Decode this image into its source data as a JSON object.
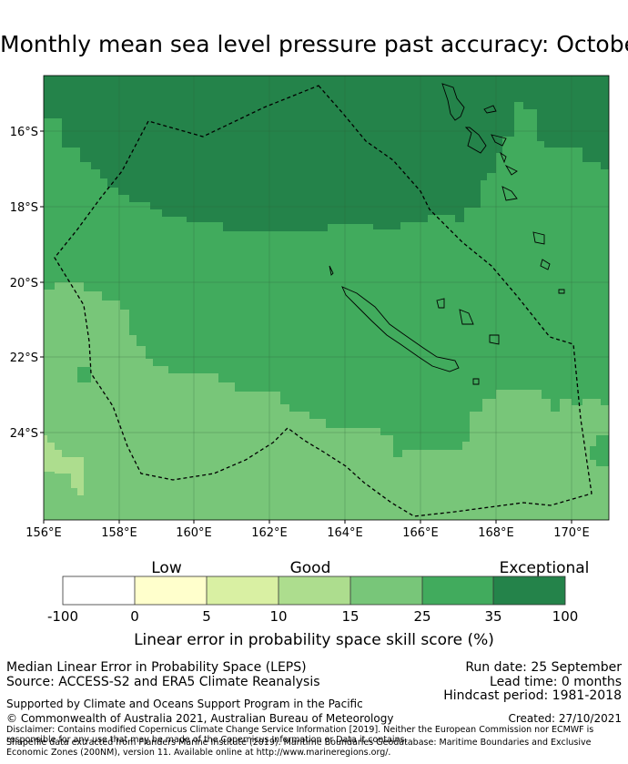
{
  "title": "Monthly mean sea level pressure past accuracy: October",
  "map": {
    "y_labels": [
      "16°S",
      "18°S",
      "20°S",
      "22°S",
      "24°S"
    ],
    "x_labels": [
      "156°E",
      "158°E",
      "160°E",
      "162°E",
      "164°E",
      "166°E",
      "168°E",
      "170°E"
    ],
    "lon_range": [
      156,
      171
    ],
    "lat_range": [
      -14.7,
      -26.5
    ],
    "colors": {
      "darkest": "#24834a",
      "dark": "#41ab5d",
      "mid": "#78c679",
      "light": "#addd8e",
      "lighter": "#d9f0a3",
      "lightest": "#ffffcc",
      "white": "#ffffff"
    }
  },
  "colorbar": {
    "categories": [
      {
        "label": "Low"
      },
      {
        "label": "Good"
      },
      {
        "label": "Exceptional"
      }
    ],
    "ticks": [
      "-100",
      "0",
      "5",
      "10",
      "15",
      "25",
      "35",
      "100"
    ],
    "title": "Linear error in probability space skill score (%)"
  },
  "footer": {
    "line1": "Median Linear Error in Probability Space (LEPS)",
    "line2": "Source: ACCESS-S2 and ERA5 Climate Reanalysis",
    "run_date": "Run date: 25 September",
    "lead_time": "Lead time: 0 months",
    "hindcast": "Hindcast period: 1981-2018",
    "support": "Supported by Climate and Oceans Support Program in the Pacific",
    "copyright": "© Commonwealth of Australia 2021, Australian Bureau of Meteorology",
    "created": "Created: 27/10/2021",
    "disclaimer": "Disclaimer: Contains modified Copernicus Climate Change Service Information [2019]. Neither the European Commission nor ECMWF is responsible for any use that may be made of the Copernicus Information or Data it contains.",
    "shapefile": "Shapefile data extracted from Flanders Marine Institute (2019). Maritime Boundaries Geodatabase: Maritime Boundaries and Exclusive Economic Zones (200NM), version 11. Available online at http://www.marineregions.org/."
  }
}
